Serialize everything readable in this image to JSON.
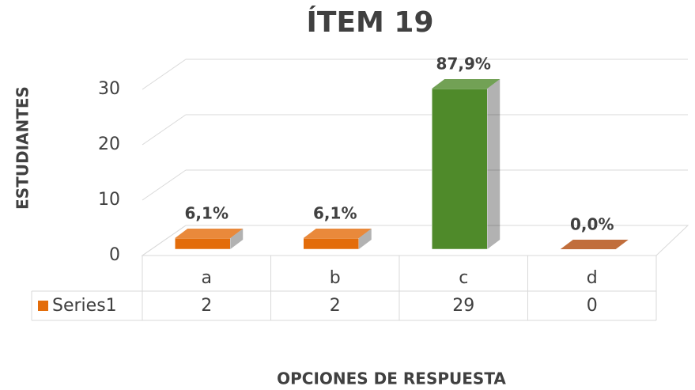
{
  "chart_data": {
    "type": "bar",
    "title": "ÍTEM 19",
    "y_label": "ESTUDIANTES",
    "x_label": "OPCIONES DE RESPUESTA",
    "categories": [
      "a",
      "b",
      "c",
      "d"
    ],
    "series": [
      {
        "name": "Series1",
        "color": "#e36c0a",
        "colors": [
          "#e36c0a",
          "#e36c0a",
          "#4f8a2a",
          "#b14a0b"
        ],
        "values": [
          2,
          2,
          29,
          0
        ],
        "value_labels": [
          "6,1%",
          "6,1%",
          "87,9%",
          "0,0%"
        ]
      }
    ],
    "ylim": [
      0,
      30
    ],
    "yticks": [
      0,
      10,
      20,
      30
    ],
    "grid": true,
    "legend": "table"
  }
}
